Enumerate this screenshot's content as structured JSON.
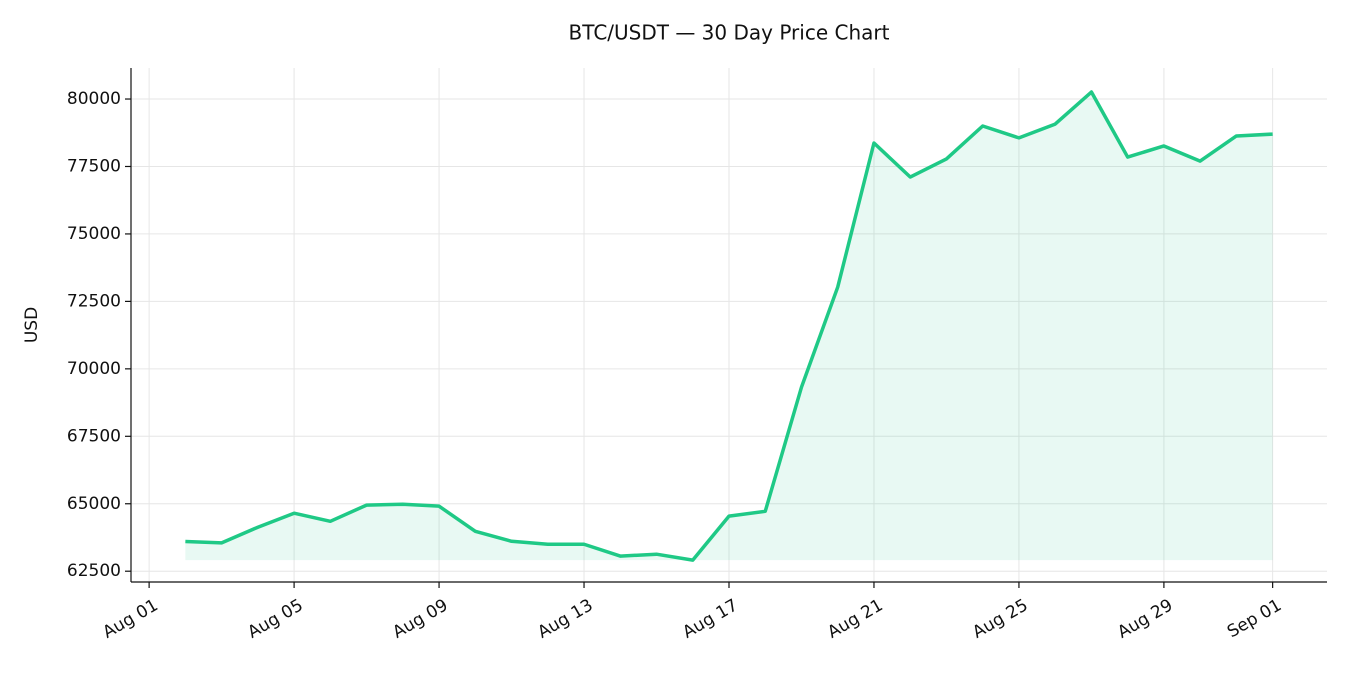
{
  "chart_data": {
    "type": "line",
    "title": "BTC/USDT — 30 Day Price Chart",
    "y_label": "USD",
    "x": [
      "Aug 02",
      "Aug 03",
      "Aug 04",
      "Aug 05",
      "Aug 06",
      "Aug 07",
      "Aug 08",
      "Aug 09",
      "Aug 10",
      "Aug 11",
      "Aug 12",
      "Aug 13",
      "Aug 14",
      "Aug 15",
      "Aug 16",
      "Aug 17",
      "Aug 18",
      "Aug 19",
      "Aug 20",
      "Aug 21",
      "Aug 22",
      "Aug 23",
      "Aug 24",
      "Aug 25",
      "Aug 26",
      "Aug 27",
      "Aug 28",
      "Aug 29",
      "Aug 30",
      "Aug 31",
      "Sep 01"
    ],
    "values": [
      63600,
      63550,
      64130,
      64650,
      64350,
      64950,
      64980,
      64910,
      63980,
      63610,
      63500,
      63500,
      63060,
      63130,
      62910,
      64540,
      64720,
      69320,
      73030,
      78370,
      77110,
      77780,
      79000,
      78560,
      79070,
      80260,
      77850,
      78260,
      77700,
      78630,
      78700
    ],
    "color": "#1fc986",
    "fill": true,
    "xticks": [
      "Aug 01",
      "Aug 05",
      "Aug 09",
      "Aug 13",
      "Aug 17",
      "Aug 21",
      "Aug 25",
      "Aug 29",
      "Sep 01"
    ],
    "ylim": [
      62100,
      81150
    ],
    "yticks": [
      62500,
      65000,
      67500,
      70000,
      72500,
      75000,
      77500,
      80000
    ],
    "grid": true
  }
}
